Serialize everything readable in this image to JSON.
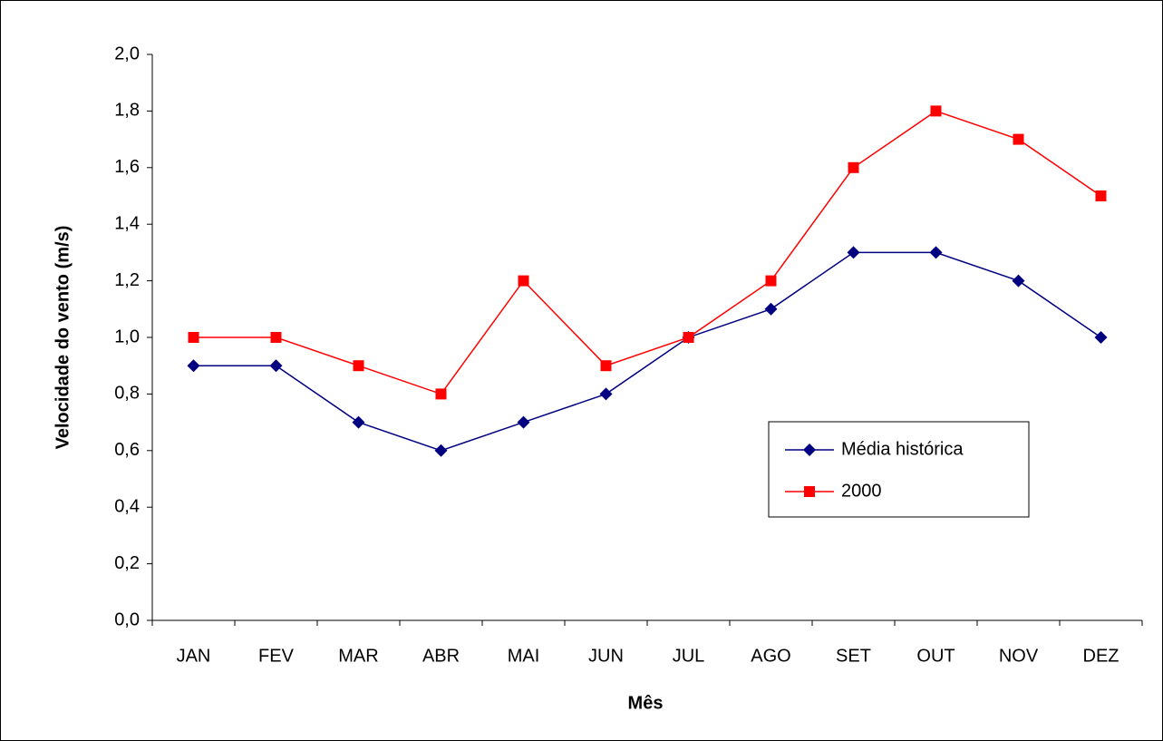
{
  "chart_data": {
    "type": "line",
    "x_label": "Mês",
    "y_label": "Velocidade do vento (m/s)",
    "categories": [
      "JAN",
      "FEV",
      "MAR",
      "ABR",
      "MAI",
      "JUN",
      "JUL",
      "AGO",
      "SET",
      "OUT",
      "NOV",
      "DEZ"
    ],
    "series": [
      {
        "name": "Média histórica",
        "color": "#000080",
        "marker": "diamond",
        "values": [
          0.9,
          0.9,
          0.7,
          0.6,
          0.7,
          0.8,
          1.0,
          1.1,
          1.3,
          1.3,
          1.2,
          1.0
        ]
      },
      {
        "name": "2000",
        "color": "#ff0000",
        "marker": "square",
        "values": [
          1.0,
          1.0,
          0.9,
          0.8,
          1.2,
          0.9,
          1.0,
          1.2,
          1.6,
          1.8,
          1.7,
          1.5
        ]
      }
    ],
    "ylim": [
      0,
      2
    ],
    "yticks": [
      {
        "value": 0,
        "label": "0,0"
      },
      {
        "value": 0.2,
        "label": "0,2"
      },
      {
        "value": 0.4,
        "label": "0,4"
      },
      {
        "value": 0.6,
        "label": "0,6"
      },
      {
        "value": 0.8,
        "label": "0,8"
      },
      {
        "value": 1,
        "label": "1,0"
      },
      {
        "value": 1.2,
        "label": "1,2"
      },
      {
        "value": 1.4,
        "label": "1,4"
      },
      {
        "value": 1.6,
        "label": "1,6"
      },
      {
        "value": 1.8,
        "label": "1,8"
      },
      {
        "value": 2,
        "label": "2,0"
      }
    ],
    "grid": false
  }
}
